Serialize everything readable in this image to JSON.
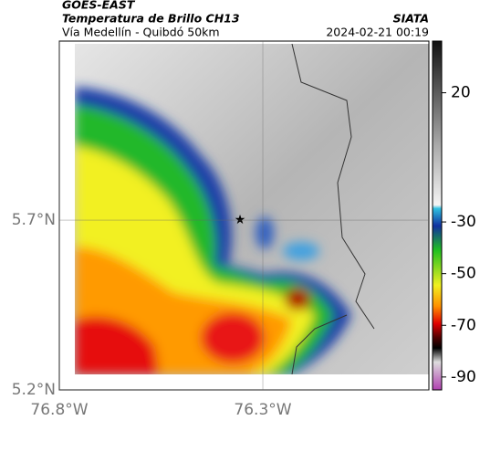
{
  "header": {
    "title": "GOES-EAST",
    "subtitle": "Temperatura de Brillo CH13",
    "source": "SIATA",
    "route": "Vía Medellín - Quibdó 50km",
    "timestamp": "2024-02-21 00:19"
  },
  "map": {
    "latlim": [
      5.2,
      6.227
    ],
    "lonlim": [
      -76.8,
      -75.892
    ],
    "lat_ticks": [
      {
        "value": 5.7,
        "label": "5.7°N"
      },
      {
        "value": 5.2,
        "label": "5.2°N"
      }
    ],
    "lon_ticks": [
      {
        "value": -76.8,
        "label": "76.8°W"
      },
      {
        "value": -76.3,
        "label": "76.3°W"
      }
    ]
  },
  "colorbar": {
    "lim": [
      -95,
      40
    ],
    "ticks": [
      20,
      -30,
      -50,
      -70,
      -90
    ]
  }
}
